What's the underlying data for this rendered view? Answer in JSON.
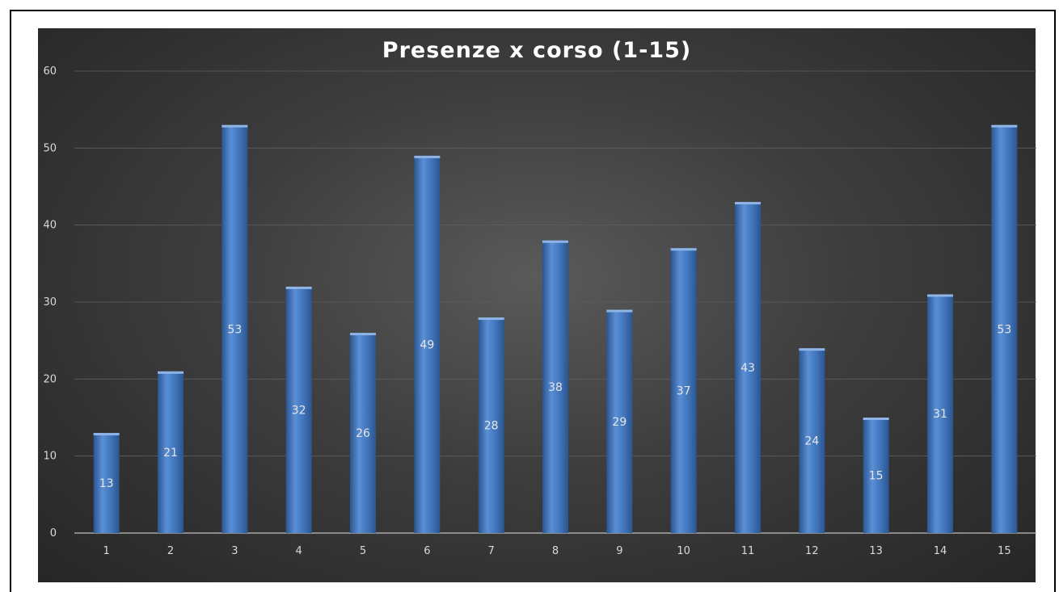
{
  "chart_data": {
    "type": "bar",
    "title": "Presenze  x corso (1-15)",
    "categories": [
      "1",
      "2",
      "3",
      "4",
      "5",
      "6",
      "7",
      "8",
      "9",
      "10",
      "11",
      "12",
      "13",
      "14",
      "15"
    ],
    "values": [
      13,
      21,
      53,
      32,
      26,
      49,
      28,
      38,
      29,
      37,
      43,
      24,
      15,
      31,
      53
    ],
    "ylim": [
      0,
      60
    ],
    "yticks": [
      0,
      10,
      20,
      30,
      40,
      50,
      60
    ],
    "grid": true,
    "data_labels": true,
    "xlabel": "",
    "ylabel": "",
    "colors": {
      "bar": "#3f73b8",
      "bar_light": "#5a8fd6",
      "bar_dark": "#2b5590",
      "background": "#3d3d3d",
      "text": "#d9d9d9",
      "title": "#ffffff",
      "grid": "#5e5e5e"
    }
  }
}
